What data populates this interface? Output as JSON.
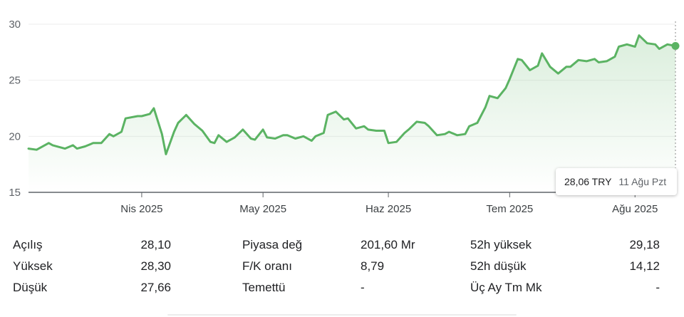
{
  "colors": {
    "line": "#5bb363",
    "fill": "#5bb363",
    "axis": "#5f6368",
    "grid": "#eeeeee"
  },
  "chart_data": {
    "type": "area",
    "ylim": [
      15,
      30
    ],
    "y_ticks": [
      "30",
      "25",
      "20",
      "15"
    ],
    "y_tick_values": [
      30,
      25,
      20,
      15
    ],
    "x_ticks": [
      {
        "label": "Nis 2025",
        "date": "2025-04-01"
      },
      {
        "label": "May 2025",
        "date": "2025-05-01"
      },
      {
        "label": "Haz 2025",
        "date": "2025-06-01"
      },
      {
        "label": "Tem 2025",
        "date": "2025-07-01"
      },
      {
        "label": "Ağu 2025",
        "date": "2025-08-01"
      }
    ],
    "xlim": [
      "2025-03-04",
      "2025-08-11"
    ],
    "series": [
      {
        "x": [
          "2025-03-04",
          "2025-03-06",
          "2025-03-09",
          "2025-03-10",
          "2025-03-13",
          "2025-03-15",
          "2025-03-16",
          "2025-03-18",
          "2025-03-20",
          "2025-03-22",
          "2025-03-24",
          "2025-03-25",
          "2025-03-27",
          "2025-03-28",
          "2025-03-31",
          "2025-04-01",
          "2025-04-03",
          "2025-04-04",
          "2025-04-06",
          "2025-04-07",
          "2025-04-09",
          "2025-04-10",
          "2025-04-12",
          "2025-04-14",
          "2025-04-16",
          "2025-04-18",
          "2025-04-19",
          "2025-04-20",
          "2025-04-22",
          "2025-04-24",
          "2025-04-26",
          "2025-04-28",
          "2025-04-29",
          "2025-05-01",
          "2025-05-02",
          "2025-05-04",
          "2025-05-06",
          "2025-05-07",
          "2025-05-09",
          "2025-05-11",
          "2025-05-13",
          "2025-05-14",
          "2025-05-16",
          "2025-05-17",
          "2025-05-19",
          "2025-05-21",
          "2025-05-22",
          "2025-05-24",
          "2025-05-26",
          "2025-05-27",
          "2025-05-29",
          "2025-05-31",
          "2025-06-01",
          "2025-06-03",
          "2025-06-05",
          "2025-06-06",
          "2025-06-08",
          "2025-06-10",
          "2025-06-11",
          "2025-06-13",
          "2025-06-15",
          "2025-06-16",
          "2025-06-18",
          "2025-06-20",
          "2025-06-21",
          "2025-06-23",
          "2025-06-25",
          "2025-06-26",
          "2025-06-28",
          "2025-06-30",
          "2025-07-01",
          "2025-07-03",
          "2025-07-04",
          "2025-07-06",
          "2025-07-08",
          "2025-07-09",
          "2025-07-11",
          "2025-07-13",
          "2025-07-15",
          "2025-07-16",
          "2025-07-18",
          "2025-07-20",
          "2025-07-22",
          "2025-07-23",
          "2025-07-25",
          "2025-07-27",
          "2025-07-28",
          "2025-07-30",
          "2025-08-01",
          "2025-08-02",
          "2025-08-04",
          "2025-08-06",
          "2025-08-07",
          "2025-08-09",
          "2025-08-11"
        ],
        "y": [
          18.9,
          18.8,
          19.4,
          19.2,
          18.9,
          19.2,
          18.9,
          19.1,
          19.4,
          19.4,
          20.2,
          20.0,
          20.4,
          21.6,
          21.8,
          21.8,
          22.0,
          22.5,
          20.2,
          18.4,
          20.4,
          21.2,
          21.9,
          21.1,
          20.5,
          19.5,
          19.4,
          20.1,
          19.5,
          19.9,
          20.6,
          19.8,
          19.7,
          20.6,
          19.9,
          19.8,
          20.1,
          20.1,
          19.8,
          20.0,
          19.6,
          20.0,
          20.3,
          21.9,
          22.2,
          21.5,
          21.6,
          20.7,
          20.9,
          20.6,
          20.5,
          20.5,
          19.4,
          19.5,
          20.3,
          20.6,
          21.3,
          21.2,
          20.9,
          20.1,
          20.2,
          20.4,
          20.1,
          20.2,
          20.9,
          21.2,
          22.6,
          23.6,
          23.4,
          24.3,
          25.1,
          26.9,
          26.8,
          25.9,
          26.3,
          27.4,
          26.2,
          25.6,
          26.2,
          26.2,
          26.8,
          26.7,
          26.9,
          26.6,
          26.7,
          27.1,
          28.0,
          28.2,
          28.0,
          29.0,
          28.3,
          28.2,
          27.8,
          28.2,
          28.06
        ]
      }
    ],
    "tooltip": {
      "price": "28,06 TRY",
      "date": "11 Ağu Pzt"
    }
  },
  "stats": {
    "rows": [
      {
        "l1": "Açılış",
        "v1": "28,10",
        "l2": "Piyasa değ",
        "v2": "201,60 Mr",
        "l3": "52h yüksek",
        "v3": "29,18"
      },
      {
        "l1": "Yüksek",
        "v1": "28,30",
        "l2": "F/K oranı",
        "v2": "8,79",
        "l3": "52h düşük",
        "v3": "14,12"
      },
      {
        "l1": "Düşük",
        "v1": "27,66",
        "l2": "Temettü",
        "v2": "-",
        "l3": "Üç Ay Tm Mk",
        "v3": "-"
      }
    ]
  }
}
